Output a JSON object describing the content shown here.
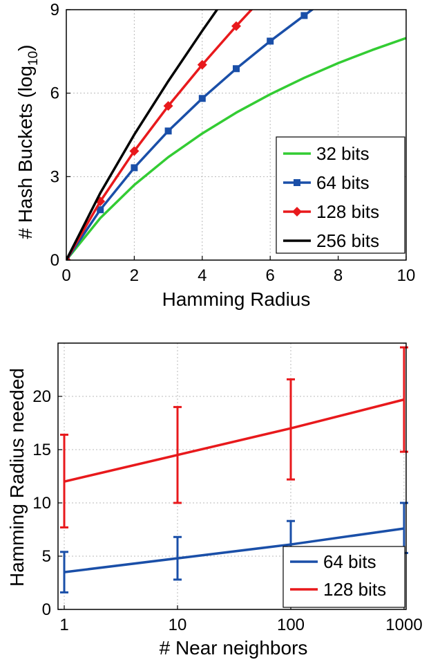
{
  "colors": {
    "green": "#33cc33",
    "blue": "#1a4fa8",
    "red": "#e8191c",
    "black": "#000000"
  },
  "chart_data": [
    {
      "type": "line",
      "xlabel": "Hamming Radius",
      "ylabel": "# Hash Buckets (log",
      "ylabel_sub": "10",
      "ylabel_close": ")",
      "xlim": [
        0,
        10
      ],
      "ylim": [
        0,
        9
      ],
      "xticks": [
        "0",
        "2",
        "4",
        "6",
        "8",
        "10"
      ],
      "yticks": [
        "0",
        "3",
        "6",
        "9"
      ],
      "grid": true,
      "legend_position": "lower-right",
      "series": [
        {
          "name": "32 bits",
          "color": "green",
          "marker": "none",
          "x": [
            0,
            1,
            2,
            3,
            4,
            5,
            6,
            7,
            8,
            9,
            10
          ],
          "y": [
            0,
            1.51,
            2.7,
            3.7,
            4.55,
            5.3,
            5.96,
            6.55,
            7.08,
            7.55,
            7.98
          ]
        },
        {
          "name": "64 bits",
          "color": "blue",
          "marker": "square",
          "x": [
            0,
            1,
            2,
            3,
            4,
            5,
            6,
            7,
            7.4
          ],
          "y": [
            0,
            1.81,
            3.32,
            4.64,
            5.81,
            6.88,
            7.87,
            8.79,
            9.15
          ]
        },
        {
          "name": "128 bits",
          "color": "red",
          "marker": "diamond",
          "x": [
            0,
            1,
            2,
            3,
            4,
            5,
            5.6
          ],
          "y": [
            0,
            2.11,
            3.92,
            5.54,
            7.02,
            8.41,
            9.2
          ]
        },
        {
          "name": "256 bits",
          "color": "black",
          "marker": "none",
          "x": [
            0,
            1,
            2,
            3,
            4,
            4.55
          ],
          "y": [
            0,
            2.41,
            4.51,
            6.43,
            8.24,
            9.2
          ]
        }
      ]
    },
    {
      "type": "line",
      "xlabel": "# Near neighbors",
      "ylabel": "Hamming Radius needed",
      "xscale": "log",
      "xlim": [
        1,
        1000
      ],
      "ylim": [
        0,
        25
      ],
      "xticks": [
        "1",
        "10",
        "100",
        "1000"
      ],
      "yticks": [
        "0",
        "5",
        "10",
        "15",
        "20"
      ],
      "grid": true,
      "legend_position": "lower-right",
      "series": [
        {
          "name": "64 bits",
          "color": "blue",
          "x": [
            1,
            10,
            100,
            1000
          ],
          "y": [
            3.5,
            4.8,
            6.1,
            7.6
          ],
          "err_low": [
            1.6,
            2.8,
            4.2,
            5.3
          ],
          "err_high": [
            5.4,
            6.8,
            8.3,
            10.0
          ]
        },
        {
          "name": "128 bits",
          "color": "red",
          "x": [
            1,
            10,
            100,
            1000
          ],
          "y": [
            12.0,
            14.5,
            17.0,
            19.7
          ],
          "err_low": [
            7.7,
            10.0,
            12.2,
            14.8
          ],
          "err_high": [
            16.4,
            19.0,
            21.6,
            24.6
          ]
        }
      ]
    }
  ]
}
